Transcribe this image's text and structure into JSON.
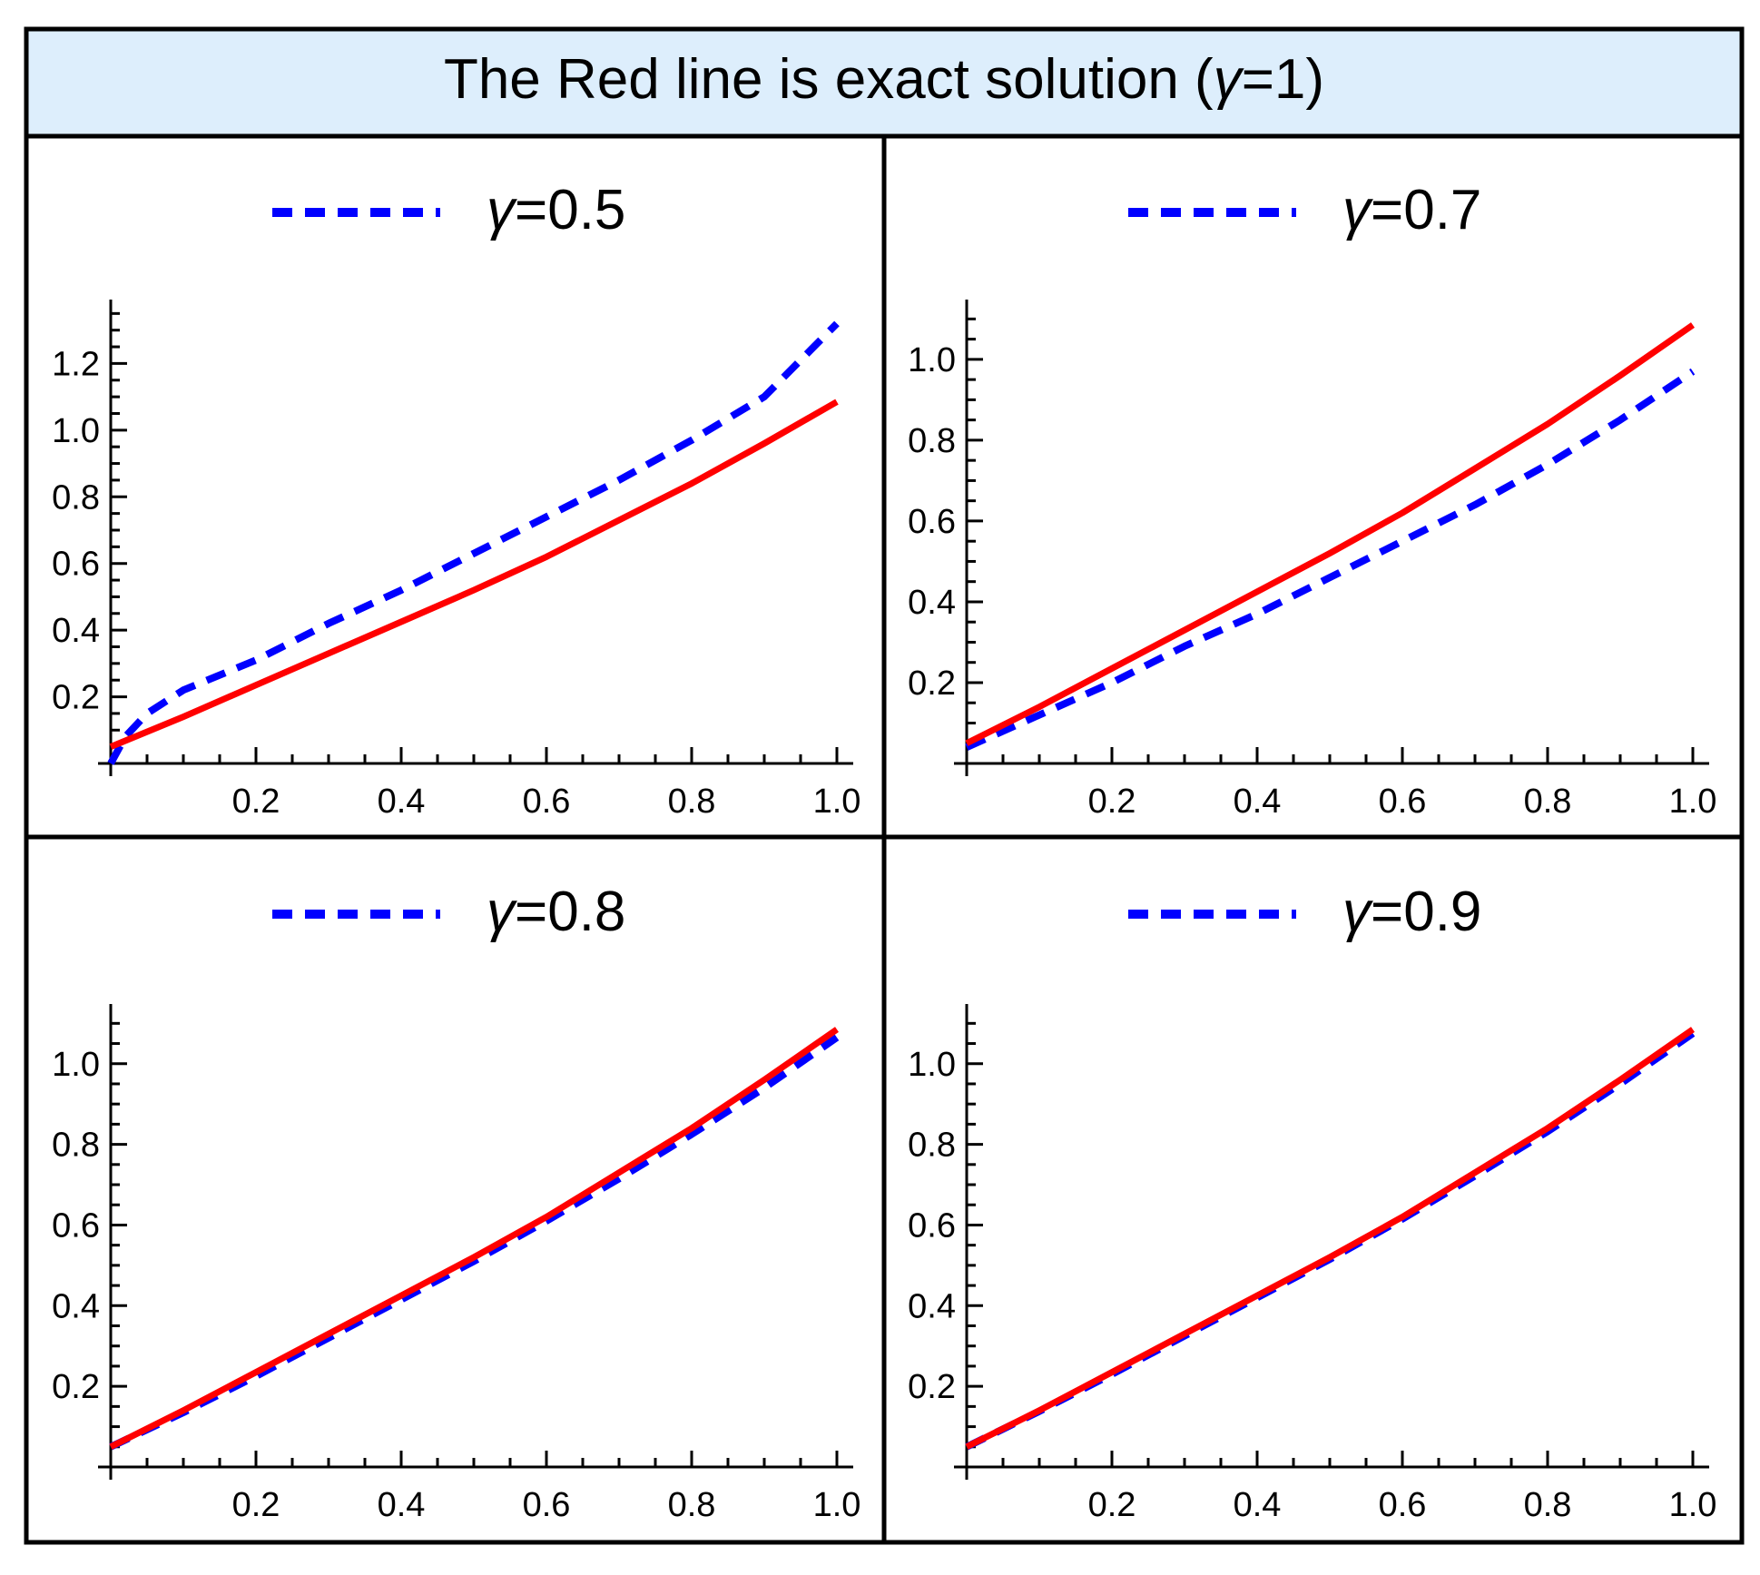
{
  "title_prefix": "The Red line is exact solution (",
  "title_symbol": "γ",
  "title_suffix": "=1)",
  "colors": {
    "exact": "#ff0000",
    "approx": "#0000ff",
    "header_bg": "#ddeefc",
    "frame": "#000000"
  },
  "chart_data": [
    {
      "type": "line",
      "legend_symbol": "γ",
      "legend_value": "=0.5",
      "xlim": [
        0,
        1.0
      ],
      "ylim": [
        0,
        1.37
      ],
      "x_ticks": [
        "0.2",
        "0.4",
        "0.6",
        "0.8",
        "1.0"
      ],
      "y_ticks": [
        "0.2",
        "0.4",
        "0.6",
        "0.8",
        "1.0",
        "1.2"
      ],
      "series": [
        {
          "name": "exact",
          "style": "solid",
          "x": [
            0,
            0.1,
            0.2,
            0.3,
            0.4,
            0.5,
            0.6,
            0.7,
            0.8,
            0.9,
            1.0
          ],
          "values": [
            0.05,
            0.14,
            0.235,
            0.33,
            0.425,
            0.52,
            0.62,
            0.73,
            0.84,
            0.96,
            1.085
          ]
        },
        {
          "name": "gamma=0.5",
          "style": "dashed",
          "x": [
            0,
            0.02,
            0.05,
            0.1,
            0.2,
            0.3,
            0.4,
            0.5,
            0.6,
            0.7,
            0.8,
            0.9,
            1.0
          ],
          "values": [
            0.0,
            0.08,
            0.15,
            0.22,
            0.31,
            0.42,
            0.52,
            0.63,
            0.74,
            0.85,
            0.97,
            1.1,
            1.32
          ]
        }
      ]
    },
    {
      "type": "line",
      "legend_symbol": "γ",
      "legend_value": "=0.7",
      "xlim": [
        0,
        1.0
      ],
      "ylim": [
        0,
        1.13
      ],
      "x_ticks": [
        "0.2",
        "0.4",
        "0.6",
        "0.8",
        "1.0"
      ],
      "y_ticks": [
        "0.2",
        "0.4",
        "0.6",
        "0.8",
        "1.0"
      ],
      "series": [
        {
          "name": "exact",
          "style": "solid",
          "x": [
            0,
            0.1,
            0.2,
            0.3,
            0.4,
            0.5,
            0.6,
            0.7,
            0.8,
            0.9,
            1.0
          ],
          "values": [
            0.05,
            0.14,
            0.235,
            0.33,
            0.425,
            0.52,
            0.62,
            0.73,
            0.84,
            0.96,
            1.085
          ]
        },
        {
          "name": "gamma=0.7",
          "style": "dashed",
          "x": [
            0,
            0.1,
            0.2,
            0.3,
            0.4,
            0.5,
            0.6,
            0.7,
            0.8,
            0.9,
            1.0
          ],
          "values": [
            0.04,
            0.12,
            0.2,
            0.29,
            0.37,
            0.46,
            0.55,
            0.64,
            0.74,
            0.85,
            0.97
          ]
        }
      ]
    },
    {
      "type": "line",
      "legend_symbol": "γ",
      "legend_value": "=0.8",
      "xlim": [
        0,
        1.0
      ],
      "ylim": [
        0,
        1.13
      ],
      "x_ticks": [
        "0.2",
        "0.4",
        "0.6",
        "0.8",
        "1.0"
      ],
      "y_ticks": [
        "0.2",
        "0.4",
        "0.6",
        "0.8",
        "1.0"
      ],
      "series": [
        {
          "name": "exact",
          "style": "solid",
          "x": [
            0,
            0.1,
            0.2,
            0.3,
            0.4,
            0.5,
            0.6,
            0.7,
            0.8,
            0.9,
            1.0
          ],
          "values": [
            0.05,
            0.14,
            0.235,
            0.33,
            0.425,
            0.52,
            0.62,
            0.73,
            0.84,
            0.96,
            1.085
          ]
        },
        {
          "name": "gamma=0.8",
          "style": "dashed",
          "x": [
            0,
            0.1,
            0.2,
            0.3,
            0.4,
            0.5,
            0.6,
            0.7,
            0.8,
            0.9,
            1.0
          ],
          "values": [
            0.05,
            0.135,
            0.225,
            0.32,
            0.415,
            0.51,
            0.61,
            0.715,
            0.825,
            0.94,
            1.065
          ]
        }
      ]
    },
    {
      "type": "line",
      "legend_symbol": "γ",
      "legend_value": "=0.9",
      "xlim": [
        0,
        1.0
      ],
      "ylim": [
        0,
        1.13
      ],
      "x_ticks": [
        "0.2",
        "0.4",
        "0.6",
        "0.8",
        "1.0"
      ],
      "y_ticks": [
        "0.2",
        "0.4",
        "0.6",
        "0.8",
        "1.0"
      ],
      "series": [
        {
          "name": "exact",
          "style": "solid",
          "x": [
            0,
            0.1,
            0.2,
            0.3,
            0.4,
            0.5,
            0.6,
            0.7,
            0.8,
            0.9,
            1.0
          ],
          "values": [
            0.05,
            0.14,
            0.235,
            0.33,
            0.425,
            0.52,
            0.62,
            0.73,
            0.84,
            0.96,
            1.085
          ]
        },
        {
          "name": "gamma=0.9",
          "style": "dashed",
          "x": [
            0,
            0.1,
            0.2,
            0.3,
            0.4,
            0.5,
            0.6,
            0.7,
            0.8,
            0.9,
            1.0
          ],
          "values": [
            0.05,
            0.138,
            0.23,
            0.325,
            0.42,
            0.515,
            0.615,
            0.722,
            0.832,
            0.95,
            1.075
          ]
        }
      ]
    }
  ]
}
